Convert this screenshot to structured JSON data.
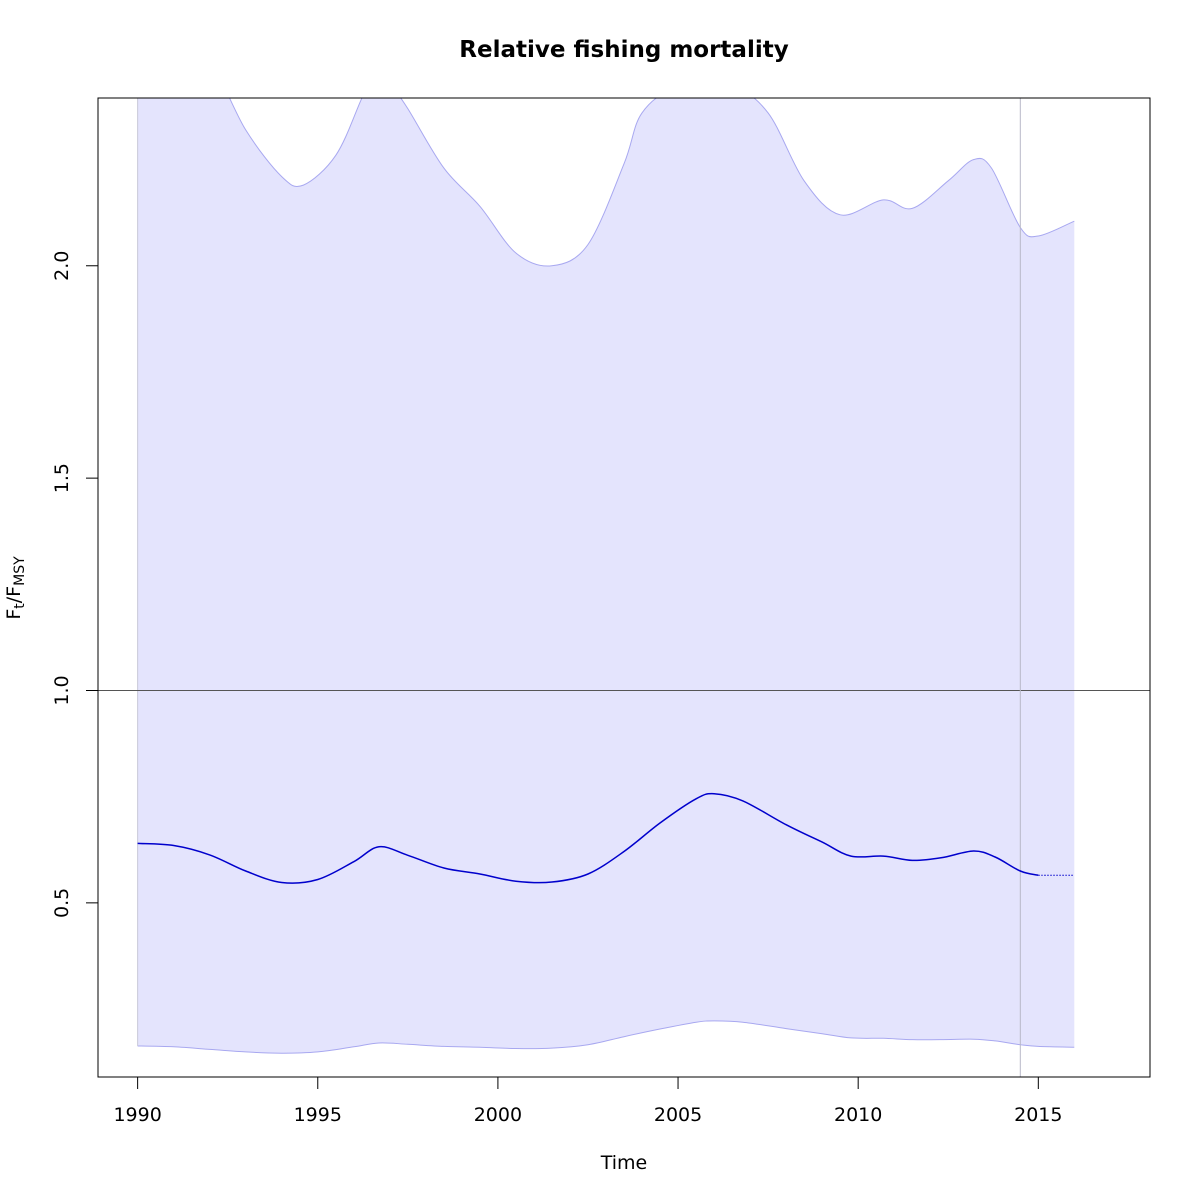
{
  "chart_data": {
    "type": "line",
    "title": "Relative fishing mortality",
    "xlabel": "Time",
    "ylabel": {
      "main": "F",
      "sub1": "t",
      "slash": "/F",
      "sub2": "MSY"
    },
    "xlim": [
      1988.9,
      2018.1
    ],
    "ylim": [
      0.09,
      2.395
    ],
    "xticks": [
      1990,
      1995,
      2000,
      2005,
      2010,
      2015
    ],
    "yticks": [
      0.5,
      1.0,
      1.5,
      2.0
    ],
    "ytick_labels": [
      "0.5",
      "1.0",
      "1.5",
      "2.0"
    ],
    "reference_line_y": 1.0,
    "vertical_line_x": 2014.5,
    "colors": {
      "line": "#0000cc",
      "band_fill": "#e4e4fd",
      "band_edge": "#a8a8f0",
      "ref_line": "#555555",
      "vline": "#b8b8c8"
    },
    "series": [
      {
        "role": "estimate",
        "style": "solid",
        "x": [
          1990,
          1991,
          1992,
          1993,
          1994,
          1995,
          1996,
          1996.7,
          1997.5,
          1998.5,
          1999.5,
          2000.5,
          2001.5,
          2002.5,
          2003.5,
          2004.5,
          2005.5,
          2006,
          2006.8,
          2008,
          2009,
          2009.8,
          2010.7,
          2011.5,
          2012.3,
          2013.2,
          2013.8,
          2014.5,
          2015
        ],
        "y": [
          0.64,
          0.635,
          0.613,
          0.575,
          0.548,
          0.555,
          0.597,
          0.632,
          0.612,
          0.582,
          0.568,
          0.551,
          0.549,
          0.568,
          0.621,
          0.688,
          0.745,
          0.757,
          0.74,
          0.684,
          0.643,
          0.61,
          0.61,
          0.6,
          0.606,
          0.622,
          0.608,
          0.575,
          0.565
        ]
      },
      {
        "role": "prediction",
        "style": "dotted",
        "x": [
          2015,
          2016
        ],
        "y": [
          0.565,
          0.565
        ]
      },
      {
        "role": "upper",
        "style": "band",
        "x": [
          1990,
          1991,
          1992,
          1993,
          1994,
          1994.6,
          1995.5,
          1996.2,
          1996.6,
          1997,
          1997.5,
          1998.5,
          1999.5,
          2000.5,
          2001.5,
          2002.5,
          2003.5,
          2004,
          2005,
          2006.5,
          2007.5,
          2008.5,
          2009.5,
          2010.7,
          2011.5,
          2012.5,
          2013.2,
          2013.7,
          2014.5,
          2015,
          2016
        ],
        "y": [
          2.5,
          2.52,
          2.48,
          2.32,
          2.21,
          2.19,
          2.26,
          2.39,
          2.47,
          2.43,
          2.37,
          2.23,
          2.14,
          2.03,
          2.0,
          2.05,
          2.24,
          2.36,
          2.42,
          2.42,
          2.36,
          2.2,
          2.12,
          2.155,
          2.135,
          2.2,
          2.25,
          2.23,
          2.09,
          2.07,
          2.105
        ]
      },
      {
        "role": "lower",
        "style": "band",
        "x": [
          1990,
          1991,
          1992,
          1993,
          1994,
          1995,
          1996,
          1996.7,
          1997.5,
          1998.5,
          1999.5,
          2000.5,
          2001.5,
          2002.5,
          2003.5,
          2004.5,
          2005.5,
          2006,
          2006.8,
          2008,
          2009,
          2009.8,
          2010.7,
          2011.5,
          2012.3,
          2013.2,
          2013.8,
          2014.5,
          2015,
          2016
        ],
        "y": [
          0.163,
          0.161,
          0.155,
          0.149,
          0.146,
          0.149,
          0.161,
          0.17,
          0.167,
          0.162,
          0.16,
          0.157,
          0.158,
          0.166,
          0.185,
          0.203,
          0.219,
          0.222,
          0.219,
          0.204,
          0.192,
          0.182,
          0.181,
          0.178,
          0.178,
          0.179,
          0.175,
          0.166,
          0.162,
          0.16
        ]
      }
    ]
  }
}
